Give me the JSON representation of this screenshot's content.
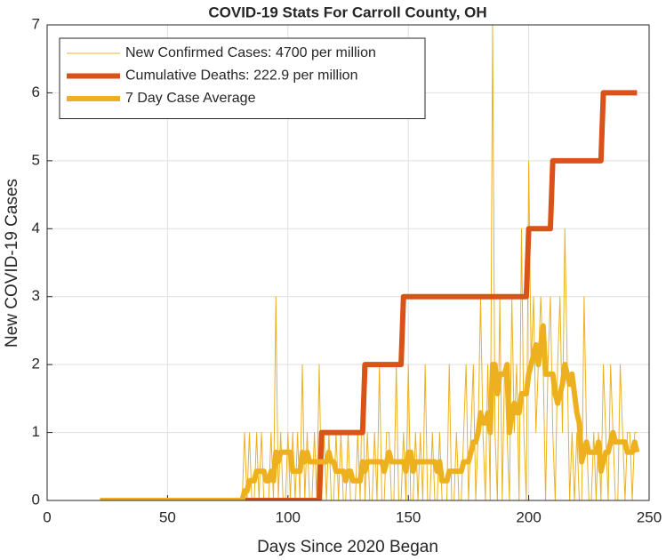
{
  "chart_data": {
    "type": "line",
    "title": "COVID-19 Stats For Carroll County, OH",
    "x_label": "Days Since 2020 Began",
    "y_label": "New COVID-19 Cases",
    "xlim": [
      0,
      250
    ],
    "xticks": [
      0,
      50,
      100,
      150,
      200,
      250
    ],
    "ylim": [
      0,
      7
    ],
    "yticks": [
      0,
      1,
      2,
      3,
      4,
      5,
      6,
      7
    ],
    "grid": true,
    "legend": "northwest",
    "x": [
      22,
      23,
      24,
      25,
      26,
      27,
      28,
      29,
      30,
      31,
      32,
      33,
      34,
      35,
      36,
      37,
      38,
      39,
      40,
      41,
      42,
      43,
      44,
      45,
      46,
      47,
      48,
      49,
      50,
      51,
      52,
      53,
      54,
      55,
      56,
      57,
      58,
      59,
      60,
      61,
      62,
      63,
      64,
      65,
      66,
      67,
      68,
      69,
      70,
      71,
      72,
      73,
      74,
      75,
      76,
      77,
      78,
      79,
      80,
      81,
      82,
      83,
      84,
      85,
      86,
      87,
      88,
      89,
      90,
      91,
      92,
      93,
      94,
      95,
      96,
      97,
      98,
      99,
      100,
      101,
      102,
      103,
      104,
      105,
      106,
      107,
      108,
      109,
      110,
      111,
      112,
      113,
      114,
      115,
      116,
      117,
      118,
      119,
      120,
      121,
      122,
      123,
      124,
      125,
      126,
      127,
      128,
      129,
      130,
      131,
      132,
      133,
      134,
      135,
      136,
      137,
      138,
      139,
      140,
      141,
      142,
      143,
      144,
      145,
      146,
      147,
      148,
      149,
      150,
      151,
      152,
      153,
      154,
      155,
      156,
      157,
      158,
      159,
      160,
      161,
      162,
      163,
      164,
      165,
      166,
      167,
      168,
      169,
      170,
      171,
      172,
      173,
      174,
      175,
      176,
      177,
      178,
      179,
      180,
      181,
      182,
      183,
      184,
      185,
      186,
      187,
      188,
      189,
      190,
      191,
      192,
      193,
      194,
      195,
      196,
      197,
      198,
      199,
      200,
      201,
      202,
      203,
      204,
      205,
      206,
      207,
      208,
      209,
      210,
      211,
      212,
      213,
      214,
      215,
      216,
      217,
      218,
      219,
      220,
      221,
      222,
      223,
      224,
      225,
      226,
      227,
      228,
      229,
      230,
      231,
      232,
      233,
      234,
      235,
      236,
      237,
      238,
      239,
      240,
      241,
      242,
      243,
      244,
      245
    ],
    "series": [
      {
        "name": "New Confirmed Cases: 4700 per million",
        "color": "#EDB120",
        "width": 1,
        "values": [
          0,
          0,
          0,
          0,
          0,
          0,
          0,
          0,
          0,
          0,
          0,
          0,
          0,
          0,
          0,
          0,
          0,
          0,
          0,
          0,
          0,
          0,
          0,
          0,
          0,
          0,
          0,
          0,
          0,
          0,
          0,
          0,
          0,
          0,
          0,
          0,
          0,
          0,
          0,
          0,
          0,
          0,
          0,
          0,
          0,
          0,
          0,
          0,
          0,
          0,
          0,
          0,
          0,
          0,
          0,
          0,
          0,
          0,
          0,
          0,
          1,
          0,
          1,
          0,
          0,
          1,
          0,
          1,
          0,
          0,
          0,
          1,
          0,
          3,
          0,
          1,
          0,
          0,
          1,
          0,
          1,
          0,
          1,
          0,
          2,
          0,
          1,
          0,
          0,
          1,
          0,
          2,
          0,
          1,
          0,
          1,
          0,
          0,
          1,
          0,
          1,
          0,
          0,
          1,
          0,
          0,
          0,
          1,
          0,
          2,
          0,
          1,
          0,
          0,
          1,
          0,
          2,
          0,
          0,
          1,
          1,
          0,
          0,
          2,
          0,
          0,
          1,
          0,
          2,
          0,
          0,
          1,
          0,
          1,
          0,
          2,
          0,
          0,
          1,
          0,
          0,
          1,
          0,
          0,
          0,
          2,
          0,
          0,
          1,
          0,
          0,
          1,
          2,
          0,
          1,
          2,
          0,
          1,
          3,
          1,
          0,
          2,
          0,
          7,
          1,
          0,
          3,
          0,
          2,
          1,
          0,
          3,
          1,
          2,
          0,
          4,
          1,
          0,
          5,
          2,
          3,
          1,
          2,
          3,
          2,
          0,
          2,
          3,
          1,
          0,
          2,
          3,
          1,
          4,
          2,
          0,
          1,
          0,
          1,
          0,
          0,
          3,
          1,
          0,
          0,
          1,
          0,
          1,
          0,
          2,
          1,
          0,
          2,
          1,
          0,
          0,
          2,
          1,
          0,
          1,
          1,
          0,
          1,
          1
        ]
      },
      {
        "name": "Cumulative Deaths: 222.9 per million",
        "color": "#D95319",
        "width": 6,
        "values": [
          0,
          0,
          0,
          0,
          0,
          0,
          0,
          0,
          0,
          0,
          0,
          0,
          0,
          0,
          0,
          0,
          0,
          0,
          0,
          0,
          0,
          0,
          0,
          0,
          0,
          0,
          0,
          0,
          0,
          0,
          0,
          0,
          0,
          0,
          0,
          0,
          0,
          0,
          0,
          0,
          0,
          0,
          0,
          0,
          0,
          0,
          0,
          0,
          0,
          0,
          0,
          0,
          0,
          0,
          0,
          0,
          0,
          0,
          0,
          0,
          0,
          0,
          0,
          0,
          0,
          0,
          0,
          0,
          0,
          0,
          0,
          0,
          0,
          0,
          0,
          0,
          0,
          0,
          0,
          0,
          0,
          0,
          0,
          0,
          0,
          0,
          0,
          0,
          0,
          0,
          0,
          0,
          1,
          1,
          1,
          1,
          1,
          1,
          1,
          1,
          1,
          1,
          1,
          1,
          1,
          1,
          1,
          1,
          1,
          1,
          2,
          2,
          2,
          2,
          2,
          2,
          2,
          2,
          2,
          2,
          2,
          2,
          2,
          2,
          2,
          2,
          3,
          3,
          3,
          3,
          3,
          3,
          3,
          3,
          3,
          3,
          3,
          3,
          3,
          3,
          3,
          3,
          3,
          3,
          3,
          3,
          3,
          3,
          3,
          3,
          3,
          3,
          3,
          3,
          3,
          3,
          3,
          3,
          3,
          3,
          3,
          3,
          3,
          3,
          3,
          3,
          3,
          3,
          3,
          3,
          3,
          3,
          3,
          3,
          3,
          3,
          3,
          3,
          4,
          4,
          4,
          4,
          4,
          4,
          4,
          4,
          4,
          4,
          5,
          5,
          5,
          5,
          5,
          5,
          5,
          5,
          5,
          5,
          5,
          5,
          5,
          5,
          5,
          5,
          5,
          5,
          5,
          5,
          5,
          6,
          6,
          6,
          6,
          6,
          6,
          6,
          6,
          6,
          6,
          6,
          6,
          6,
          6,
          6
        ]
      },
      {
        "name": "7 Day Case Average",
        "color": "#EDB120",
        "width": 6,
        "values": [
          0,
          0,
          0,
          0,
          0,
          0,
          0,
          0,
          0,
          0,
          0,
          0,
          0,
          0,
          0,
          0,
          0,
          0,
          0,
          0,
          0,
          0,
          0,
          0,
          0,
          0,
          0,
          0,
          0,
          0,
          0,
          0,
          0,
          0,
          0,
          0,
          0,
          0,
          0,
          0,
          0,
          0,
          0,
          0,
          0,
          0,
          0,
          0,
          0,
          0,
          0,
          0,
          0,
          0,
          0,
          0,
          0,
          0,
          0,
          0,
          0.14,
          0.14,
          0.29,
          0.29,
          0.29,
          0.43,
          0.43,
          0.43,
          0.43,
          0.29,
          0.29,
          0.43,
          0.29,
          0.71,
          0.57,
          0.71,
          0.71,
          0.71,
          0.71,
          0.71,
          0.43,
          0.43,
          0.43,
          0.43,
          0.71,
          0.57,
          0.71,
          0.57,
          0.57,
          0.57,
          0.57,
          0.57,
          0.57,
          0.57,
          0.57,
          0.71,
          0.57,
          0.57,
          0.43,
          0.43,
          0.43,
          0.43,
          0.29,
          0.43,
          0.43,
          0.29,
          0.29,
          0.29,
          0.29,
          0.57,
          0.43,
          0.57,
          0.57,
          0.57,
          0.57,
          0.57,
          0.57,
          0.57,
          0.43,
          0.57,
          0.71,
          0.57,
          0.57,
          0.57,
          0.57,
          0.57,
          0.57,
          0.43,
          0.71,
          0.71,
          0.43,
          0.57,
          0.57,
          0.57,
          0.57,
          0.57,
          0.57,
          0.57,
          0.57,
          0.57,
          0.43,
          0.57,
          0.29,
          0.29,
          0.29,
          0.43,
          0.43,
          0.43,
          0.43,
          0.43,
          0.43,
          0.57,
          0.57,
          0.57,
          0.71,
          0.86,
          0.86,
          1,
          1.29,
          1.14,
          1.14,
          1.29,
          1,
          2,
          2,
          1.57,
          1.86,
          1.86,
          1.86,
          2,
          1,
          1.29,
          1.43,
          1.29,
          1.29,
          1.57,
          1.57,
          1.57,
          1.86,
          2,
          2.14,
          2.29,
          2,
          2.29,
          2.57,
          1.86,
          1.86,
          1.86,
          1.86,
          1.57,
          1.43,
          1.57,
          1.71,
          2,
          1.86,
          1.71,
          1.86,
          1.57,
          1.29,
          1.14,
          0.57,
          0.71,
          0.86,
          0.71,
          0.71,
          0.71,
          0.71,
          0.86,
          0.43,
          0.57,
          0.71,
          0.71,
          0.86,
          1,
          0.86,
          0.86,
          0.86,
          0.86,
          0.86,
          0.71,
          0.71,
          0.71,
          0.86,
          0.71
        ]
      }
    ]
  }
}
